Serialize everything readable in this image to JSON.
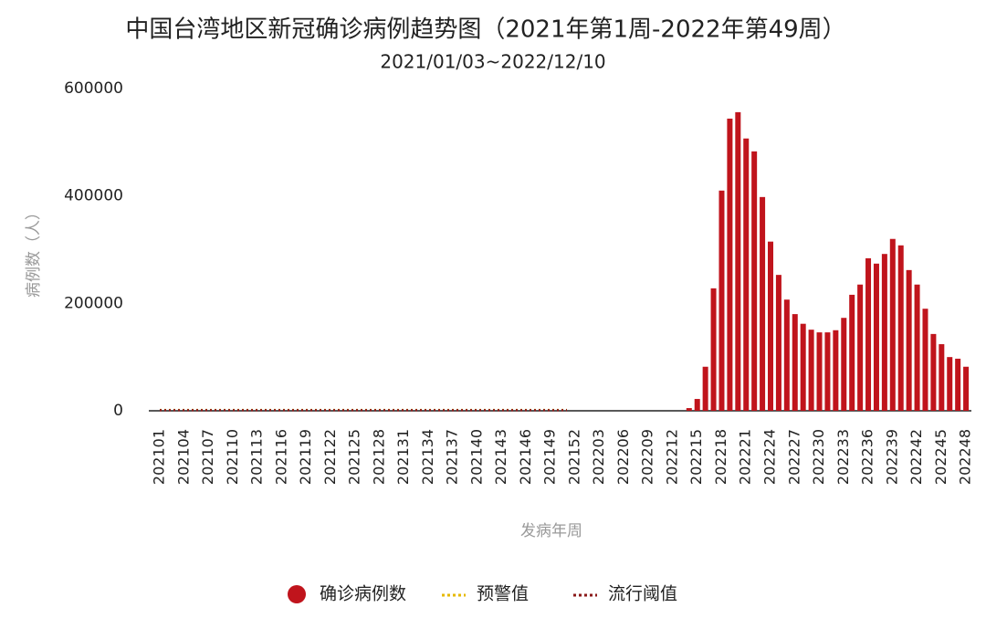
{
  "chart_data": {
    "type": "bar",
    "title": "中国台湾地区新冠确诊病例趋势图（2021年第1周-2022年第49周）",
    "subtitle": "2021/01/03~2022/12/10",
    "y_label": "病例数（人）",
    "x_label": "发病年周",
    "categories": [
      "202101",
      null,
      null,
      "202104",
      null,
      null,
      "202107",
      null,
      null,
      "202110",
      null,
      null,
      "202113",
      null,
      null,
      "202116",
      null,
      null,
      "202119",
      null,
      null,
      "202122",
      null,
      null,
      "202125",
      null,
      null,
      "202128",
      null,
      null,
      "202131",
      null,
      null,
      "202134",
      null,
      null,
      "202137",
      null,
      null,
      "202140",
      null,
      null,
      "202143",
      null,
      null,
      "202146",
      null,
      null,
      "202149",
      null,
      null,
      "202152",
      null,
      null,
      "202203",
      null,
      null,
      "202206",
      null,
      null,
      "202209",
      null,
      null,
      "202212",
      null,
      null,
      "202215",
      null,
      null,
      "202218",
      null,
      null,
      "202221",
      null,
      null,
      "202224",
      null,
      null,
      "202227",
      null,
      null,
      "202230",
      null,
      null,
      "202233",
      null,
      null,
      "202236",
      null,
      null,
      "202239",
      null,
      null,
      "202242",
      null,
      null,
      "202245",
      null,
      null,
      "202248"
    ],
    "series": [
      {
        "name": "确诊病例数",
        "type": "bar",
        "color": "#c0141c",
        "values": [
          0,
          0,
          0,
          0,
          0,
          0,
          0,
          0,
          0,
          0,
          0,
          0,
          0,
          0,
          0,
          0,
          0,
          0,
          0,
          0,
          0,
          0,
          0,
          0,
          0,
          0,
          0,
          0,
          0,
          0,
          0,
          0,
          0,
          0,
          0,
          0,
          0,
          0,
          0,
          0,
          0,
          0,
          0,
          0,
          0,
          0,
          0,
          0,
          0,
          0,
          0,
          0,
          0,
          0,
          0,
          0,
          0,
          0,
          0,
          0,
          0,
          0,
          0,
          0,
          0,
          5000,
          22000,
          82000,
          228000,
          410000,
          544000,
          556000,
          507000,
          483000,
          398000,
          315000,
          253000,
          207000,
          180000,
          162000,
          151000,
          146000,
          146000,
          150000,
          173000,
          216000,
          235000,
          284000,
          274000,
          292000,
          320000,
          308000,
          262000,
          235000,
          190000,
          143000,
          124000,
          100000,
          97000,
          82000
        ]
      },
      {
        "name": "预警值",
        "type": "line",
        "color": "#e6b800",
        "values": [
          1500,
          1500,
          1500,
          1500,
          1500,
          1500,
          1500,
          1500,
          1500,
          1500,
          1500,
          1500,
          1500,
          1500,
          1500,
          1500,
          1500,
          1500,
          1500,
          1500,
          1500,
          1500,
          1500,
          1500,
          1500,
          1500,
          1500,
          1500,
          1500,
          1500,
          1500,
          1500,
          1500,
          1500,
          1500,
          1500,
          1500,
          1500,
          1500,
          1500,
          1500,
          1500,
          1500,
          1500,
          1500,
          1500,
          1500,
          1500,
          1500,
          1500,
          1500,
          null,
          null,
          null,
          null,
          null,
          null,
          null,
          null,
          null,
          null,
          null,
          null,
          null,
          null,
          null,
          null,
          null,
          null,
          null,
          null,
          null,
          null,
          null,
          null,
          null,
          null,
          null,
          null,
          null,
          null,
          null,
          null,
          null,
          null,
          null,
          null,
          null,
          null,
          null,
          null,
          null,
          null,
          null,
          null,
          null,
          null,
          null,
          null,
          null
        ]
      },
      {
        "name": "流行阈值",
        "type": "line",
        "color": "#8b1a1a",
        "values": [
          1000,
          1000,
          1000,
          1000,
          1000,
          1000,
          1000,
          1000,
          1000,
          1000,
          1000,
          1000,
          1000,
          1000,
          1000,
          1000,
          1000,
          1000,
          1000,
          1000,
          1000,
          1000,
          1000,
          1000,
          1000,
          1000,
          1000,
          1000,
          1000,
          1000,
          1000,
          1000,
          1000,
          1000,
          1000,
          1000,
          1000,
          1000,
          1000,
          1000,
          1000,
          1000,
          1000,
          1000,
          1000,
          1000,
          1000,
          1000,
          1000,
          1000,
          1000,
          null,
          null,
          null,
          null,
          null,
          null,
          null,
          null,
          null,
          null,
          null,
          null,
          null,
          null,
          null,
          null,
          null,
          null,
          null,
          null,
          null,
          null,
          null,
          null,
          null,
          null,
          null,
          null,
          null,
          null,
          null,
          null,
          null,
          null,
          null,
          null,
          null,
          null,
          null,
          null,
          null,
          null,
          null,
          null,
          null,
          null,
          null,
          null,
          null
        ]
      }
    ],
    "ylim": [
      0,
      600000
    ],
    "yticks": [
      0,
      200000,
      400000,
      600000
    ],
    "grid": false
  }
}
